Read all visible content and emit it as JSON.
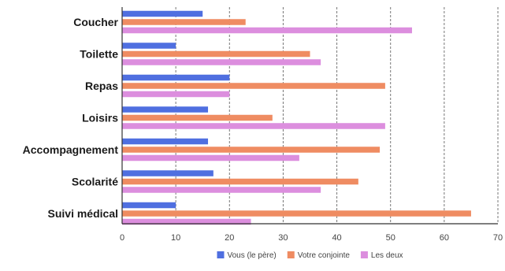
{
  "chart_data": {
    "type": "bar",
    "orientation": "horizontal",
    "categories": [
      "Coucher",
      "Toilette",
      "Repas",
      "Loisirs",
      "Accompagnement",
      "Scolarité",
      "Suivi médical"
    ],
    "series": [
      {
        "name": "Vous (le père)",
        "color": "#4f6fe0",
        "values": [
          15,
          10,
          20,
          16,
          16,
          17,
          10
        ]
      },
      {
        "name": "Votre conjointe",
        "color": "#ef8c62",
        "values": [
          23,
          35,
          49,
          28,
          48,
          44,
          65
        ]
      },
      {
        "name": "Les deux",
        "color": "#dc8ede",
        "values": [
          54,
          37,
          20,
          49,
          33,
          37,
          24
        ]
      }
    ],
    "xlim": [
      0,
      70
    ],
    "xticks": [
      0,
      10,
      20,
      30,
      40,
      50,
      60,
      70
    ],
    "grid": true,
    "legend_position": "bottom"
  }
}
